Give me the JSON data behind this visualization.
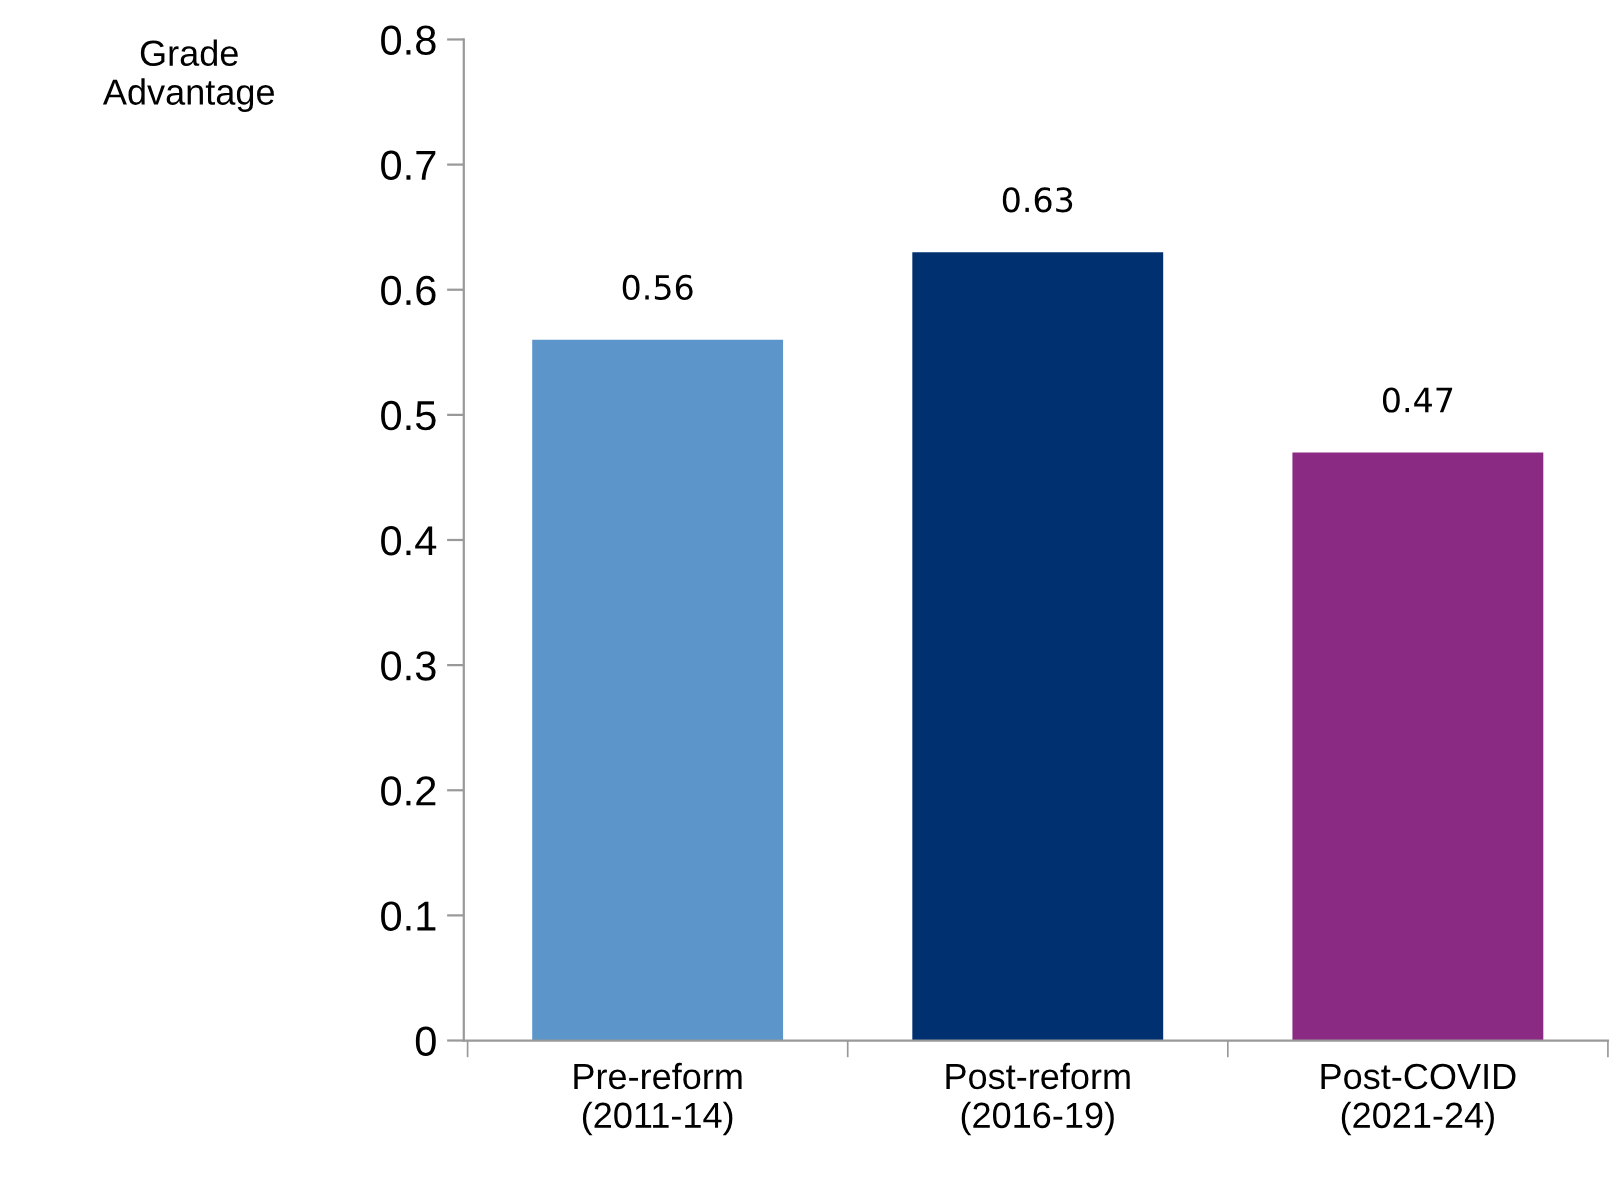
{
  "chart_data": {
    "type": "bar",
    "ylabel": "Grade\nAdvantage",
    "categories": [
      "Pre-reform\n(2011-14)",
      "Post-reform\n(2016-19)",
      "Post-COVID\n(2021-24)"
    ],
    "values": [
      0.56,
      0.63,
      0.47
    ],
    "colors": [
      "#5b95c9",
      "#003070",
      "#8b2a82"
    ],
    "ylim": [
      0,
      0.8
    ],
    "yticks": [
      0,
      0.1,
      0.2,
      0.3,
      0.4,
      0.5,
      0.6,
      0.7,
      0.8
    ],
    "data_labels": true,
    "grid": false,
    "legend": false
  }
}
